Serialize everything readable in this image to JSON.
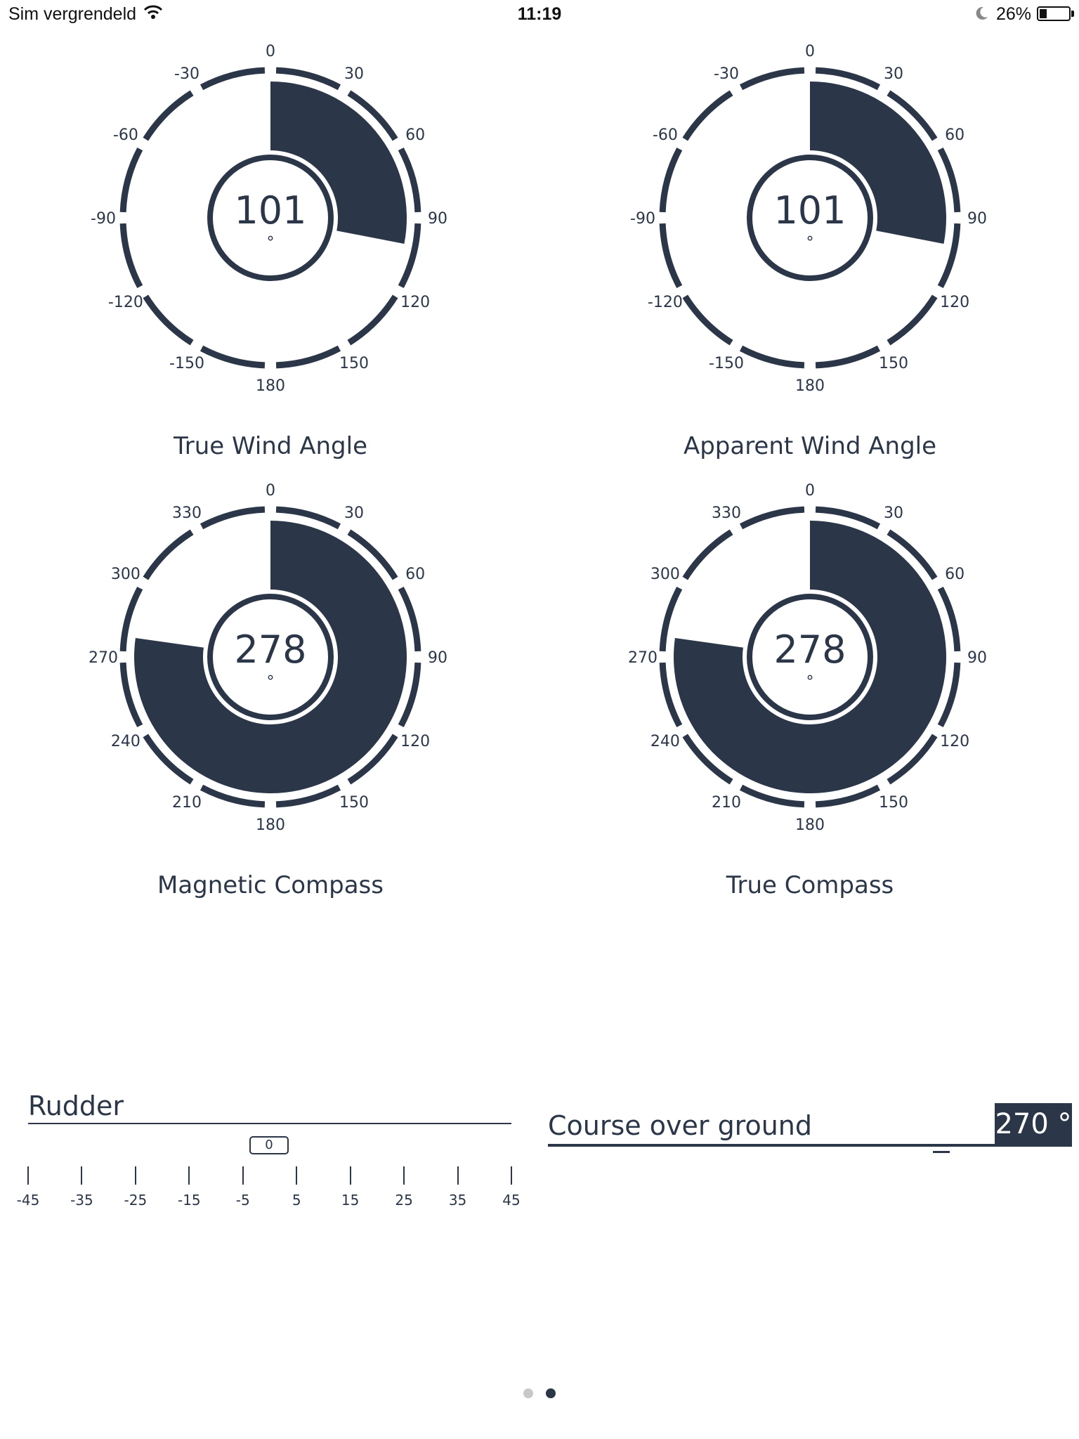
{
  "status_bar": {
    "carrier": "Sim vergrendeld",
    "time": "11:19",
    "battery_percent": "26%",
    "battery_level": 0.26
  },
  "gauges": [
    {
      "id": "true-wind-angle",
      "title": "True Wind Angle",
      "value": 101,
      "value_text": "101",
      "unit": "°",
      "scale": "signed",
      "labels": [
        "0",
        "30",
        "60",
        "90",
        "120",
        "150",
        "180",
        "-150",
        "-120",
        "-90",
        "-60",
        "-30"
      ]
    },
    {
      "id": "apparent-wind-angle",
      "title": "Apparent Wind Angle",
      "value": 101,
      "value_text": "101",
      "unit": "°",
      "scale": "signed",
      "labels": [
        "0",
        "30",
        "60",
        "90",
        "120",
        "150",
        "180",
        "-150",
        "-120",
        "-90",
        "-60",
        "-30"
      ]
    },
    {
      "id": "magnetic-compass",
      "title": "Magnetic Compass",
      "value": 278,
      "value_text": "278",
      "unit": "°",
      "scale": "compass",
      "labels": [
        "0",
        "30",
        "60",
        "90",
        "120",
        "150",
        "180",
        "210",
        "240",
        "270",
        "300",
        "330"
      ]
    },
    {
      "id": "true-compass",
      "title": "True Compass",
      "value": 278,
      "value_text": "278",
      "unit": "°",
      "scale": "compass",
      "labels": [
        "0",
        "30",
        "60",
        "90",
        "120",
        "150",
        "180",
        "210",
        "240",
        "270",
        "300",
        "330"
      ]
    }
  ],
  "rudder": {
    "title": "Rudder",
    "value": 0,
    "value_text": "0",
    "scale": [
      "-45",
      "-35",
      "-25",
      "-15",
      "-5",
      "5",
      "15",
      "25",
      "35",
      "45"
    ]
  },
  "course_over_ground": {
    "title": "Course over ground",
    "value_text": "270 °"
  },
  "page_indicator": {
    "count": 2,
    "active": 1
  },
  "colors": {
    "primary": "#2b3748",
    "background": "#ffffff",
    "dot_inactive": "#c8c8c8"
  }
}
